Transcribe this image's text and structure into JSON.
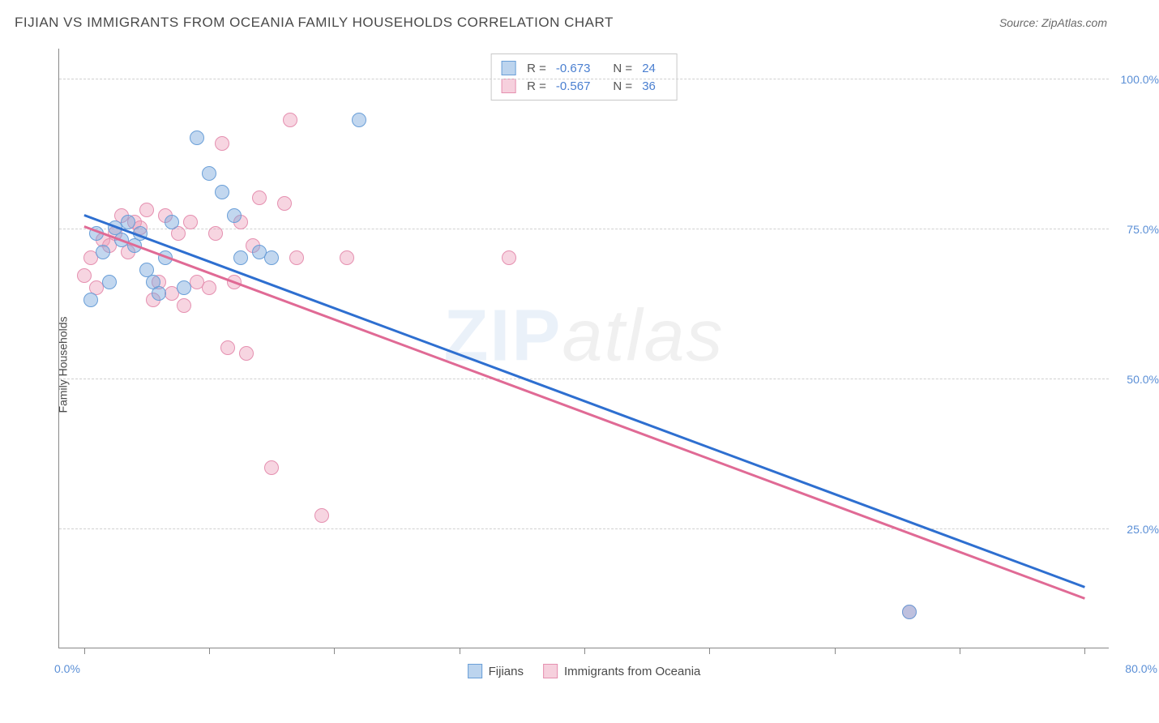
{
  "header": {
    "title": "FIJIAN VS IMMIGRANTS FROM OCEANIA FAMILY HOUSEHOLDS CORRELATION CHART",
    "source": "Source: ZipAtlas.com"
  },
  "chart": {
    "type": "scatter",
    "y_axis": {
      "title": "Family Households",
      "ticks": [
        25.0,
        50.0,
        75.0,
        100.0
      ],
      "tick_labels": [
        "25.0%",
        "50.0%",
        "75.0%",
        "100.0%"
      ],
      "min": 5,
      "max": 105,
      "label_color": "#5b8fd6",
      "grid_color": "#d0d0d0",
      "title_fontsize": 14
    },
    "x_axis": {
      "min": -2,
      "max": 82,
      "tick_positions": [
        0,
        10,
        20,
        30,
        40,
        50,
        60,
        70,
        80
      ],
      "label_left": "0.0%",
      "label_right": "80.0%",
      "label_color": "#5b8fd6"
    },
    "series": [
      {
        "name": "Fijians",
        "point_fill": "rgba(120,166,220,0.45)",
        "point_stroke": "#6a9fd8",
        "point_radius": 9,
        "line_color": "#2e6fd0",
        "swatch_fill": "#bcd4ee",
        "swatch_border": "#6a9fd8",
        "R": "-0.673",
        "N": "24",
        "trend": {
          "x1": 0,
          "y1": 77.5,
          "x2": 80,
          "y2": 15.5
        },
        "points": [
          {
            "x": 0.5,
            "y": 63
          },
          {
            "x": 1,
            "y": 74
          },
          {
            "x": 1.5,
            "y": 71
          },
          {
            "x": 2,
            "y": 66
          },
          {
            "x": 2.5,
            "y": 75
          },
          {
            "x": 3,
            "y": 73
          },
          {
            "x": 3.5,
            "y": 76
          },
          {
            "x": 4,
            "y": 72
          },
          {
            "x": 4.5,
            "y": 74
          },
          {
            "x": 5,
            "y": 68
          },
          {
            "x": 5.5,
            "y": 66
          },
          {
            "x": 6,
            "y": 64
          },
          {
            "x": 6.5,
            "y": 70
          },
          {
            "x": 7,
            "y": 76
          },
          {
            "x": 8,
            "y": 65
          },
          {
            "x": 9,
            "y": 90
          },
          {
            "x": 10,
            "y": 84
          },
          {
            "x": 11,
            "y": 81
          },
          {
            "x": 12,
            "y": 77
          },
          {
            "x": 12.5,
            "y": 70
          },
          {
            "x": 14,
            "y": 71
          },
          {
            "x": 15,
            "y": 70
          },
          {
            "x": 22,
            "y": 93
          },
          {
            "x": 66,
            "y": 11
          }
        ]
      },
      {
        "name": "Immigrants from Oceania",
        "point_fill": "rgba(236,150,180,0.40)",
        "point_stroke": "#e590b0",
        "point_radius": 9,
        "line_color": "#e06a95",
        "swatch_fill": "#f6d0dd",
        "swatch_border": "#e590b0",
        "R": "-0.567",
        "N": "36",
        "trend": {
          "x1": 0,
          "y1": 75.5,
          "x2": 80,
          "y2": 13.5
        },
        "points": [
          {
            "x": 0,
            "y": 67
          },
          {
            "x": 0.5,
            "y": 70
          },
          {
            "x": 1,
            "y": 65
          },
          {
            "x": 1.5,
            "y": 73
          },
          {
            "x": 2,
            "y": 72
          },
          {
            "x": 2.5,
            "y": 74
          },
          {
            "x": 3,
            "y": 77
          },
          {
            "x": 3.5,
            "y": 71
          },
          {
            "x": 4,
            "y": 76
          },
          {
            "x": 4.5,
            "y": 75
          },
          {
            "x": 5,
            "y": 78
          },
          {
            "x": 5.5,
            "y": 63
          },
          {
            "x": 6,
            "y": 66
          },
          {
            "x": 6.5,
            "y": 77
          },
          {
            "x": 7,
            "y": 64
          },
          {
            "x": 7.5,
            "y": 74
          },
          {
            "x": 8,
            "y": 62
          },
          {
            "x": 9,
            "y": 66
          },
          {
            "x": 10,
            "y": 65
          },
          {
            "x": 10.5,
            "y": 74
          },
          {
            "x": 11,
            "y": 89
          },
          {
            "x": 11.5,
            "y": 55
          },
          {
            "x": 12,
            "y": 66
          },
          {
            "x": 12.5,
            "y": 76
          },
          {
            "x": 13,
            "y": 54
          },
          {
            "x": 13.5,
            "y": 72
          },
          {
            "x": 14,
            "y": 80
          },
          {
            "x": 15,
            "y": 35
          },
          {
            "x": 16,
            "y": 79
          },
          {
            "x": 16.5,
            "y": 93
          },
          {
            "x": 17,
            "y": 70
          },
          {
            "x": 19,
            "y": 27
          },
          {
            "x": 21,
            "y": 70
          },
          {
            "x": 34,
            "y": 70
          },
          {
            "x": 66,
            "y": 11
          },
          {
            "x": 8.5,
            "y": 76
          }
        ]
      }
    ],
    "legend_top": {
      "R_label": "R =",
      "N_label": "N =",
      "border_color": "#c8c8c8",
      "value_color": "#4a7fd0"
    },
    "watermark": {
      "zip": "ZIP",
      "atlas": "atlas"
    },
    "background_color": "#ffffff"
  }
}
